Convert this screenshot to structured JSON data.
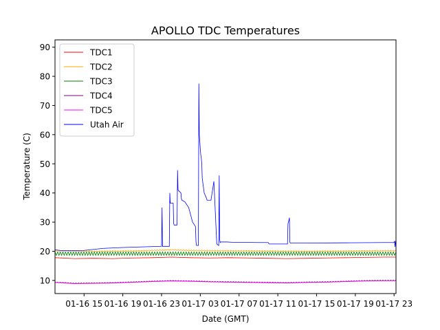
{
  "chart_data": {
    "type": "line",
    "title": "APOLLO TDC Temperatures",
    "xlabel": "Date (GMT)",
    "ylabel": "Temperature (C)",
    "xlim": [
      12.0,
      47.2
    ],
    "ylim": [
      5.5,
      92.5
    ],
    "x_ticks": [
      {
        "x": 15,
        "label": "01-16 15"
      },
      {
        "x": 19,
        "label": "01-16 19"
      },
      {
        "x": 23,
        "label": "01-16 23"
      },
      {
        "x": 27,
        "label": "01-17 03"
      },
      {
        "x": 31,
        "label": "01-17 07"
      },
      {
        "x": 35,
        "label": "01-17 11"
      },
      {
        "x": 39,
        "label": "01-17 15"
      },
      {
        "x": 43,
        "label": "01-17 19"
      },
      {
        "x": 47,
        "label": "01-17 23"
      }
    ],
    "y_ticks": [
      10,
      20,
      30,
      40,
      50,
      60,
      70,
      80,
      90
    ],
    "legend_position": "top-left",
    "series": [
      {
        "name": "TDC1",
        "color": "#ff0000",
        "x": [
          12.0,
          14.0,
          16.0,
          18.0,
          20.0,
          22.0,
          24.0,
          26.0,
          28.0,
          30.0,
          32.0,
          34.0,
          36.0,
          38.0,
          40.0,
          42.0,
          44.0,
          46.0,
          47.2
        ],
        "y": [
          17.8,
          17.5,
          17.6,
          17.5,
          17.7,
          17.8,
          18.0,
          17.8,
          17.7,
          17.8,
          17.7,
          17.6,
          17.5,
          17.6,
          17.7,
          17.8,
          17.9,
          18.0,
          18.0
        ]
      },
      {
        "name": "TDC2",
        "color": "#ffa500",
        "x": [
          12.0,
          16.0,
          20.0,
          24.0,
          26.0,
          30.0,
          34.0,
          38.0,
          42.0,
          46.0,
          47.2
        ],
        "y": [
          20.2,
          20.0,
          20.1,
          20.5,
          20.3,
          20.2,
          20.1,
          20.0,
          20.1,
          20.2,
          20.2
        ],
        "noise": 0.15
      },
      {
        "name": "TDC3",
        "color": "#008000",
        "x": [
          12.0,
          47.2
        ],
        "y": [
          19.2,
          19.2
        ],
        "noise": 0.6
      },
      {
        "name": "TDC4",
        "color": "#800080",
        "x": [
          12.0,
          14.0,
          18.0,
          22.0,
          24.0,
          26.0,
          28.0,
          30.0,
          32.0,
          34.0,
          36.0,
          38.0,
          40.0,
          42.0,
          44.0,
          46.0,
          47.2
        ],
        "y": [
          9.4,
          9.0,
          9.2,
          9.7,
          9.9,
          9.8,
          9.6,
          9.5,
          9.4,
          9.3,
          9.2,
          9.4,
          9.5,
          9.7,
          9.9,
          10.0,
          10.0
        ],
        "noise": 0.12
      },
      {
        "name": "TDC5",
        "color": "#ff00ff",
        "x": [
          12.0,
          14.0,
          18.0,
          22.0,
          24.0,
          26.0,
          28.0,
          30.0,
          32.0,
          34.0,
          36.0,
          38.0,
          40.0,
          42.0,
          44.0,
          46.0,
          47.2
        ],
        "y": [
          9.3,
          8.9,
          9.1,
          9.6,
          9.8,
          9.7,
          9.5,
          9.4,
          9.3,
          9.2,
          9.1,
          9.3,
          9.4,
          9.6,
          9.8,
          9.9,
          9.9
        ]
      },
      {
        "name": "Utah Air",
        "color": "#0000ff",
        "x": [
          12.0,
          12.5,
          13.0,
          15.0,
          17.0,
          19.0,
          21.0,
          23.0,
          23.05,
          23.1,
          23.8,
          23.85,
          23.9,
          24.2,
          24.25,
          24.3,
          24.6,
          24.65,
          24.7,
          25.0,
          25.05,
          25.1,
          25.4,
          25.8,
          26.2,
          26.5,
          26.55,
          26.6,
          26.8,
          26.85,
          26.9,
          27.0,
          27.05,
          27.1,
          27.15,
          27.2,
          27.4,
          27.6,
          27.7,
          28.1,
          28.4,
          28.7,
          28.9,
          28.95,
          29.0,
          29.05,
          29.1,
          29.15,
          29.2,
          29.5,
          29.55,
          29.6,
          29.65,
          29.7,
          29.75,
          30.3,
          30.35,
          30.4,
          31.0,
          33.0,
          34.0,
          34.1,
          36.0,
          36.05,
          36.1,
          36.2,
          36.25,
          36.3,
          38.0,
          42.0,
          46.0,
          47.0,
          47.05,
          47.1,
          47.15,
          47.2
        ],
        "y": [
          20.5,
          20.3,
          20.2,
          20.3,
          21.0,
          21.3,
          21.5,
          21.7,
          35.0,
          21.7,
          21.7,
          40.0,
          36.5,
          36.5,
          29.5,
          29.0,
          29.0,
          47.8,
          41.0,
          40.0,
          38.0,
          37.5,
          37.0,
          35.0,
          30.0,
          28.5,
          23.5,
          22.0,
          22.0,
          77.5,
          60.0,
          55.0,
          53.0,
          52.0,
          50.0,
          45.0,
          40.0,
          38.5,
          37.5,
          37.5,
          44.0,
          22.5,
          22.0,
          46.0,
          24.0,
          23.0,
          23.2,
          23.2,
          23.2,
          23.2,
          23.2,
          23.2,
          23.2,
          23.2,
          23.2,
          23.1,
          23.1,
          23.1,
          23.1,
          23.0,
          23.0,
          22.5,
          22.5,
          29.5,
          30.0,
          31.5,
          23.0,
          22.8,
          22.8,
          22.9,
          23.0,
          23.0,
          23.5,
          21.5,
          23.3,
          23.0
        ]
      }
    ]
  }
}
